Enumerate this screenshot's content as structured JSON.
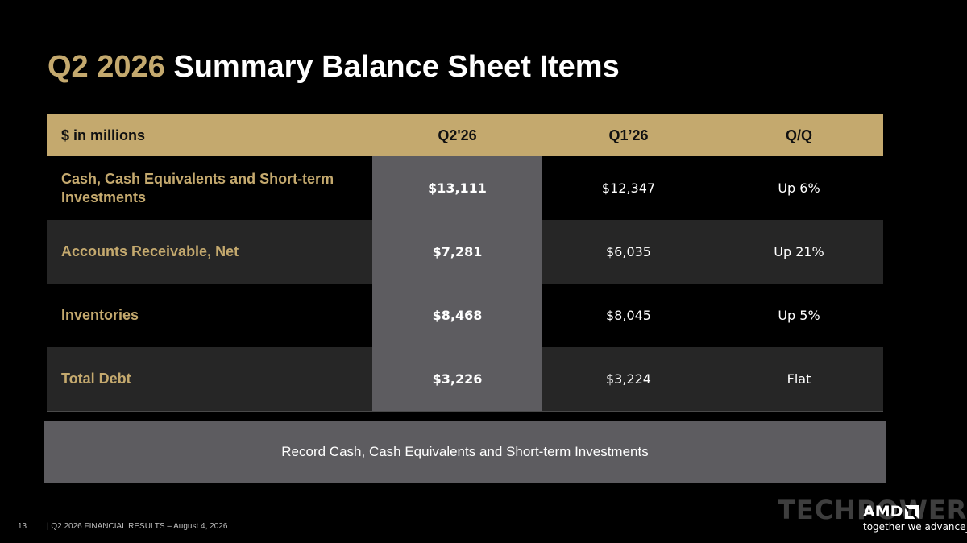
{
  "title": {
    "accent": "Q2 2026",
    "rest": "Summary Balance Sheet Items"
  },
  "table": {
    "headers": [
      "$ in millions",
      "Q2'26",
      "Q1’26",
      "Q/Q"
    ],
    "rows": [
      {
        "label": "Cash, Cash Equivalents and Short-term Investments",
        "q2": "$13,111",
        "q1": "$12,347",
        "qq": "Up 6%"
      },
      {
        "label": "Accounts Receivable, Net",
        "q2": "$7,281",
        "q1": "$6,035",
        "qq": "Up 21%"
      },
      {
        "label": "Inventories",
        "q2": "$8,468",
        "q1": "$8,045",
        "qq": "Up 5%"
      },
      {
        "label": "Total Debt",
        "q2": "$3,226",
        "q1": "$3,224",
        "qq": "Flat"
      }
    ]
  },
  "callout": "Record Cash, Cash Equivalents and Short-term Investments",
  "footer": {
    "page_number": "13",
    "text": "|  Q2 2026 FINANCIAL RESULTS – August 4, 2026"
  },
  "watermark": "TECHPOWERUP",
  "branding": {
    "logo_text": "AMD",
    "tagline": "together we advance_"
  },
  "colors": {
    "accent": "#c4a96e",
    "highlight": "#5d5c60",
    "background": "#000000",
    "row_alt": "#262626"
  }
}
